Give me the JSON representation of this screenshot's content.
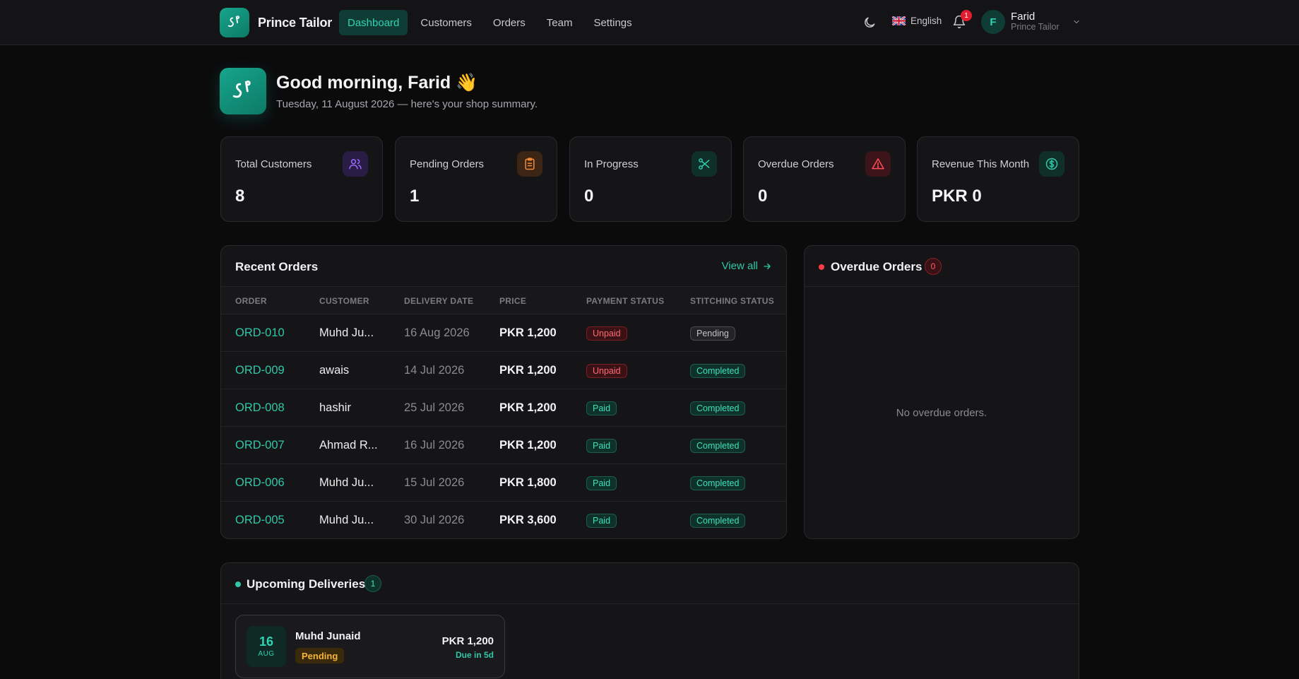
{
  "brand": {
    "name": "Prince Tailor"
  },
  "nav": {
    "items": [
      {
        "label": "Dashboard",
        "active": true
      },
      {
        "label": "Customers"
      },
      {
        "label": "Orders"
      },
      {
        "label": "Team"
      },
      {
        "label": "Settings"
      }
    ]
  },
  "header": {
    "language": "English",
    "notification_count": "1",
    "user": {
      "initial": "F",
      "name": "Farid",
      "shop": "Prince Tailor"
    }
  },
  "greeting": {
    "title": "Good morning, Farid 👋",
    "subtitle": "Tuesday, 11 August 2026 — here's your shop summary."
  },
  "stats": [
    {
      "label": "Total Customers",
      "value": "8",
      "icon": "users-icon",
      "color": "#9b6bff"
    },
    {
      "label": "Pending Orders",
      "value": "1",
      "icon": "clipboard-icon",
      "color": "#f08a3c"
    },
    {
      "label": "In Progress",
      "value": "0",
      "icon": "scissors-icon",
      "color": "#2fc7a8"
    },
    {
      "label": "Overdue Orders",
      "value": "0",
      "icon": "alert-triangle-icon",
      "color": "#ff4d5a"
    },
    {
      "label": "Revenue This Month",
      "value": "PKR 0",
      "icon": "dollar-circle-icon",
      "color": "#2fc7a8"
    }
  ],
  "recent_orders": {
    "title": "Recent Orders",
    "view_all": "View all",
    "columns": [
      "ORDER",
      "CUSTOMER",
      "DELIVERY DATE",
      "PRICE",
      "PAYMENT STATUS",
      "STITCHING STATUS"
    ],
    "rows": [
      {
        "order": "ORD-010",
        "customer": "Muhd Ju...",
        "delivery": "16 Aug 2026",
        "price": "PKR 1,200",
        "payment": "Unpaid",
        "stitching": "Pending"
      },
      {
        "order": "ORD-009",
        "customer": "awais",
        "delivery": "14 Jul 2026",
        "price": "PKR 1,200",
        "payment": "Unpaid",
        "stitching": "Completed"
      },
      {
        "order": "ORD-008",
        "customer": "hashir",
        "delivery": "25 Jul 2026",
        "price": "PKR 1,200",
        "payment": "Paid",
        "stitching": "Completed"
      },
      {
        "order": "ORD-007",
        "customer": "Ahmad R...",
        "delivery": "16 Jul 2026",
        "price": "PKR 1,200",
        "payment": "Paid",
        "stitching": "Completed"
      },
      {
        "order": "ORD-006",
        "customer": "Muhd Ju...",
        "delivery": "15 Jul 2026",
        "price": "PKR 1,800",
        "payment": "Paid",
        "stitching": "Completed"
      },
      {
        "order": "ORD-005",
        "customer": "Muhd Ju...",
        "delivery": "30 Jul 2026",
        "price": "PKR 3,600",
        "payment": "Paid",
        "stitching": "Completed"
      }
    ]
  },
  "overdue_orders": {
    "title": "Overdue Orders",
    "count": "0",
    "empty": "No overdue orders."
  },
  "upcoming": {
    "title": "Upcoming Deliveries",
    "count": "1",
    "items": [
      {
        "day": "16",
        "month": "AUG",
        "customer": "Muhd Junaid",
        "status": "Pending",
        "price": "PKR 1,200",
        "due": "Due in 5d"
      }
    ]
  }
}
